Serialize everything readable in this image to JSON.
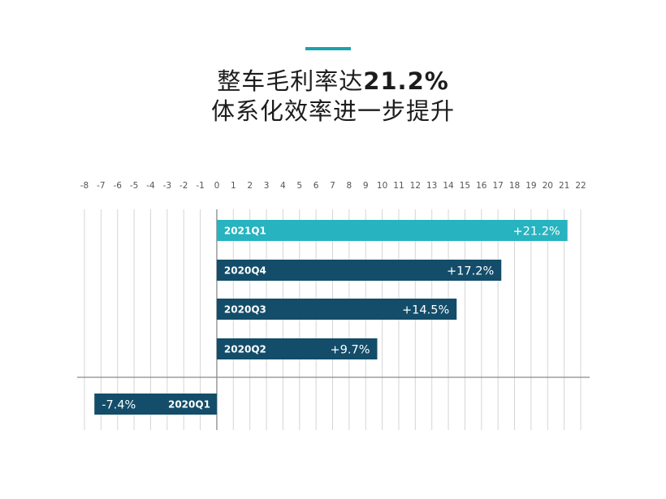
{
  "title": {
    "line1_prefix": "整车毛利率达",
    "line1_highlight": "21.2%",
    "line2": "体系化效率进一步提升"
  },
  "colors": {
    "accent": "#1aa3ad",
    "bar_dark": "#134d6a",
    "bar_current": "#27b3bf",
    "grid": "#d5d5d5",
    "axis": "#8a8a8a",
    "tick_text": "#555555"
  },
  "chart_data": {
    "type": "bar",
    "orientation": "horizontal",
    "x_ticks": [
      -8,
      -7,
      -6,
      -5,
      -4,
      -3,
      -2,
      -1,
      0,
      1,
      2,
      3,
      4,
      5,
      6,
      7,
      8,
      9,
      10,
      11,
      12,
      13,
      14,
      15,
      16,
      17,
      18,
      19,
      20,
      21,
      22
    ],
    "xlim": [
      -8,
      22
    ],
    "grid": true,
    "categories": [
      "2021Q1",
      "2020Q4",
      "2020Q3",
      "2020Q2",
      "2020Q1"
    ],
    "values": [
      21.2,
      17.2,
      14.5,
      9.7,
      -7.4
    ],
    "value_labels": [
      "+21.2%",
      "+17.2%",
      "+14.5%",
      "+9.7%",
      "-7.4%"
    ]
  }
}
